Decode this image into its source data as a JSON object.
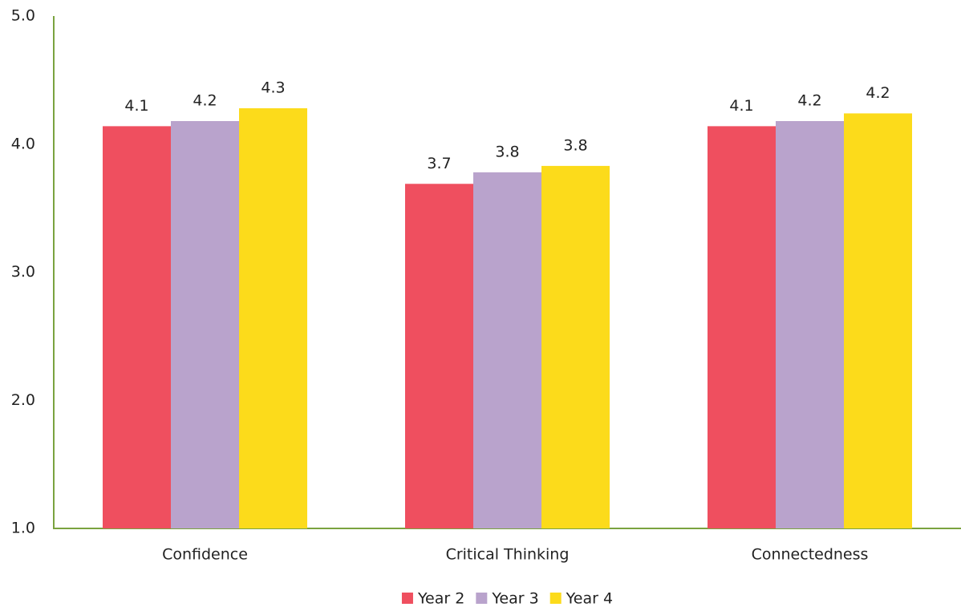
{
  "chart_data": {
    "type": "bar",
    "categories": [
      "Confidence",
      "Critical Thinking",
      "Connectedness"
    ],
    "series": [
      {
        "name": "Year 2",
        "color": "#ef4f5f",
        "values": [
          4.14,
          3.69,
          4.14
        ],
        "value_labels": [
          "4.1",
          "3.7",
          "4.1"
        ]
      },
      {
        "name": "Year 3",
        "color": "#b9a3cc",
        "values": [
          4.18,
          3.78,
          4.18
        ],
        "value_labels": [
          "4.2",
          "3.8",
          "4.2"
        ]
      },
      {
        "name": "Year 4",
        "color": "#fcdb1b",
        "values": [
          4.28,
          3.83,
          4.24
        ],
        "value_labels": [
          "4.3",
          "3.8",
          "4.2"
        ]
      }
    ],
    "ylim": [
      1,
      5
    ],
    "yticks": [
      {
        "value": 1,
        "label": "1.0"
      },
      {
        "value": 2,
        "label": "2.0"
      },
      {
        "value": 3,
        "label": "3.0"
      },
      {
        "value": 4,
        "label": "4.0"
      },
      {
        "value": 5,
        "label": "5.0"
      }
    ],
    "grid": false,
    "legend": "bottom"
  }
}
